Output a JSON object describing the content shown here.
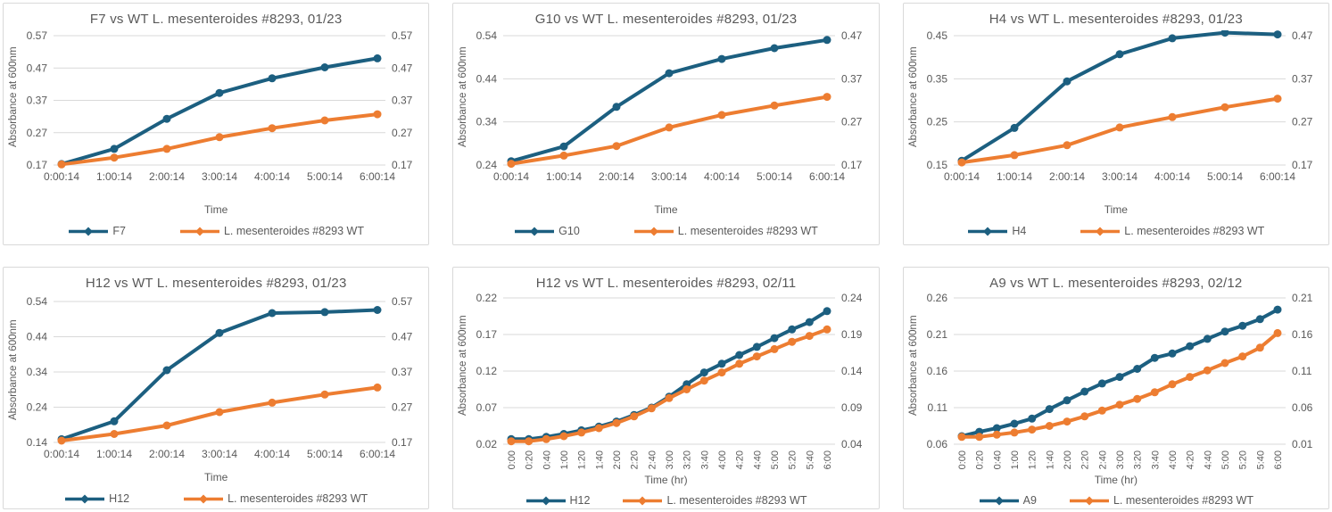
{
  "page": {
    "background": "#ffffff"
  },
  "colors": {
    "mutant": "#1c5f80",
    "wild_type": "#ED7D31",
    "grid": "#d9d9d9",
    "text": "#595959",
    "panel_border": "#d9d9d9"
  },
  "chart_data": [
    {
      "type": "line",
      "title": "F7 vs WT L. mesenteroides #8293, 01/23",
      "ylabel": "Absorbance at 600nm",
      "xlabel": "Time",
      "legend_position": "bottom",
      "grid": true,
      "rotated_x_labels": false,
      "categories": [
        "0:00:14",
        "1:00:14",
        "2:00:14",
        "3:00:14",
        "4:00:14",
        "5:00:14",
        "6:00:14"
      ],
      "left_axis_ticks": [
        0.17,
        0.27,
        0.37,
        0.47,
        0.57
      ],
      "right_axis_ticks": [
        0.17,
        0.27,
        0.37,
        0.47,
        0.57
      ],
      "series": [
        {
          "name": "F7",
          "axis": "left",
          "color_key": "mutant",
          "values": [
            0.173,
            0.22,
            0.313,
            0.393,
            0.438,
            0.472,
            0.5
          ]
        },
        {
          "name": "L. mesenteroides #8293 WT",
          "axis": "right",
          "color_key": "wild_type",
          "values": [
            0.172,
            0.193,
            0.22,
            0.256,
            0.284,
            0.308,
            0.327
          ]
        }
      ]
    },
    {
      "type": "line",
      "title": "G10 vs WT L. mesenteroides #8293, 01/23",
      "ylabel": "Absorbance at 600nm",
      "xlabel": "Time",
      "legend_position": "bottom",
      "grid": true,
      "rotated_x_labels": false,
      "categories": [
        "0:00:14",
        "1:00:14",
        "2:00:14",
        "3:00:14",
        "4:00:14",
        "5:00:14",
        "6:00:14"
      ],
      "left_axis_ticks": [
        0.24,
        0.34,
        0.44,
        0.54
      ],
      "right_axis_ticks": [
        0.17,
        0.27,
        0.37,
        0.47
      ],
      "series": [
        {
          "name": "G10",
          "axis": "left",
          "color_key": "mutant",
          "values": [
            0.249,
            0.283,
            0.375,
            0.453,
            0.486,
            0.511,
            0.53
          ]
        },
        {
          "name": "L. mesenteroides #8293 WT",
          "axis": "right",
          "color_key": "wild_type",
          "values": [
            0.173,
            0.192,
            0.214,
            0.257,
            0.286,
            0.308,
            0.328
          ]
        }
      ]
    },
    {
      "type": "line",
      "title": "H4 vs WT L. mesenteroides #8293, 01/23",
      "ylabel": "Absorbance at 600nm",
      "xlabel": "Time",
      "legend_position": "bottom",
      "grid": true,
      "rotated_x_labels": false,
      "categories": [
        "0:00:14",
        "1:00:14",
        "2:00:14",
        "3:00:14",
        "4:00:14",
        "5:00:14",
        "6:00:14"
      ],
      "left_axis_ticks": [
        0.15,
        0.25,
        0.35,
        0.45
      ],
      "right_axis_ticks": [
        0.17,
        0.27,
        0.37,
        0.47
      ],
      "series": [
        {
          "name": "H4",
          "axis": "left",
          "color_key": "mutant",
          "values": [
            0.16,
            0.236,
            0.344,
            0.407,
            0.444,
            0.457,
            0.453
          ]
        },
        {
          "name": "L. mesenteroides #8293 WT",
          "axis": "right",
          "color_key": "wild_type",
          "values": [
            0.176,
            0.193,
            0.216,
            0.257,
            0.281,
            0.304,
            0.324
          ]
        }
      ]
    },
    {
      "type": "line",
      "title": "H12 vs WT L. mesenteroides #8293, 01/23",
      "ylabel": "Absorbance at 600nm",
      "xlabel": "Time",
      "legend_position": "bottom",
      "grid": true,
      "rotated_x_labels": false,
      "categories": [
        "0:00:14",
        "1:00:14",
        "2:00:14",
        "3:00:14",
        "4:00:14",
        "5:00:14",
        "6:00:14"
      ],
      "left_axis_ticks": [
        0.14,
        0.24,
        0.34,
        0.44,
        0.54
      ],
      "right_axis_ticks": [
        0.17,
        0.27,
        0.37,
        0.47,
        0.57
      ],
      "series": [
        {
          "name": "H12",
          "axis": "left",
          "color_key": "mutant",
          "values": [
            0.149,
            0.2,
            0.345,
            0.451,
            0.507,
            0.51,
            0.516
          ]
        },
        {
          "name": "L. mesenteroides #8293 WT",
          "axis": "right",
          "color_key": "wild_type",
          "values": [
            0.175,
            0.194,
            0.218,
            0.256,
            0.283,
            0.306,
            0.326
          ]
        }
      ]
    },
    {
      "type": "line",
      "title": "H12 vs WT L. mesenteroides #8293, 02/11",
      "ylabel": "Absorbance at 600nm",
      "xlabel": "Time (hr)",
      "legend_position": "bottom",
      "grid": true,
      "rotated_x_labels": true,
      "categories": [
        "0:00",
        "0:20",
        "0:40",
        "1:00",
        "1:20",
        "1:40",
        "2:00",
        "2:20",
        "2:40",
        "3:00",
        "3:20",
        "3:40",
        "4:00",
        "4:20",
        "4:40",
        "5:00",
        "5:20",
        "5:40",
        "6:00"
      ],
      "left_axis_ticks": [
        0.02,
        0.07,
        0.12,
        0.17,
        0.22
      ],
      "right_axis_ticks": [
        0.04,
        0.09,
        0.14,
        0.19,
        0.24
      ],
      "series": [
        {
          "name": "H12",
          "axis": "left",
          "color_key": "mutant",
          "values": [
            0.027,
            0.027,
            0.03,
            0.034,
            0.039,
            0.044,
            0.051,
            0.06,
            0.07,
            0.085,
            0.102,
            0.118,
            0.13,
            0.142,
            0.153,
            0.165,
            0.177,
            0.187,
            0.202
          ]
        },
        {
          "name": "L. mesenteroides #8293 WT",
          "axis": "right",
          "color_key": "wild_type",
          "values": [
            0.044,
            0.044,
            0.047,
            0.051,
            0.056,
            0.062,
            0.069,
            0.078,
            0.089,
            0.103,
            0.115,
            0.127,
            0.138,
            0.15,
            0.16,
            0.17,
            0.18,
            0.188,
            0.197
          ]
        }
      ]
    },
    {
      "type": "line",
      "title": "A9 vs WT L. mesenteroides #8293, 02/12",
      "ylabel": "Absorbance at 600nm",
      "xlabel": "Time (hr)",
      "legend_position": "bottom",
      "grid": true,
      "rotated_x_labels": true,
      "categories": [
        "0:00",
        "0:20",
        "0:40",
        "1:00",
        "1:20",
        "1:40",
        "2:00",
        "2:20",
        "2:40",
        "3:00",
        "3:20",
        "3:40",
        "4:00",
        "4:20",
        "4:40",
        "5:00",
        "5:20",
        "5:40",
        "6:00"
      ],
      "left_axis_ticks": [
        0.06,
        0.11,
        0.16,
        0.21,
        0.26
      ],
      "right_axis_ticks": [
        0.01,
        0.06,
        0.11,
        0.16,
        0.21
      ],
      "series": [
        {
          "name": "A9",
          "axis": "left",
          "color_key": "mutant",
          "values": [
            0.071,
            0.077,
            0.082,
            0.088,
            0.095,
            0.108,
            0.12,
            0.132,
            0.143,
            0.152,
            0.163,
            0.178,
            0.184,
            0.194,
            0.204,
            0.214,
            0.222,
            0.231,
            0.244
          ]
        },
        {
          "name": "L. mesenteroides #8293 WT",
          "axis": "right",
          "color_key": "wild_type",
          "values": [
            0.02,
            0.02,
            0.023,
            0.026,
            0.03,
            0.035,
            0.041,
            0.048,
            0.056,
            0.064,
            0.072,
            0.081,
            0.092,
            0.102,
            0.111,
            0.121,
            0.13,
            0.142,
            0.162
          ]
        }
      ]
    }
  ]
}
